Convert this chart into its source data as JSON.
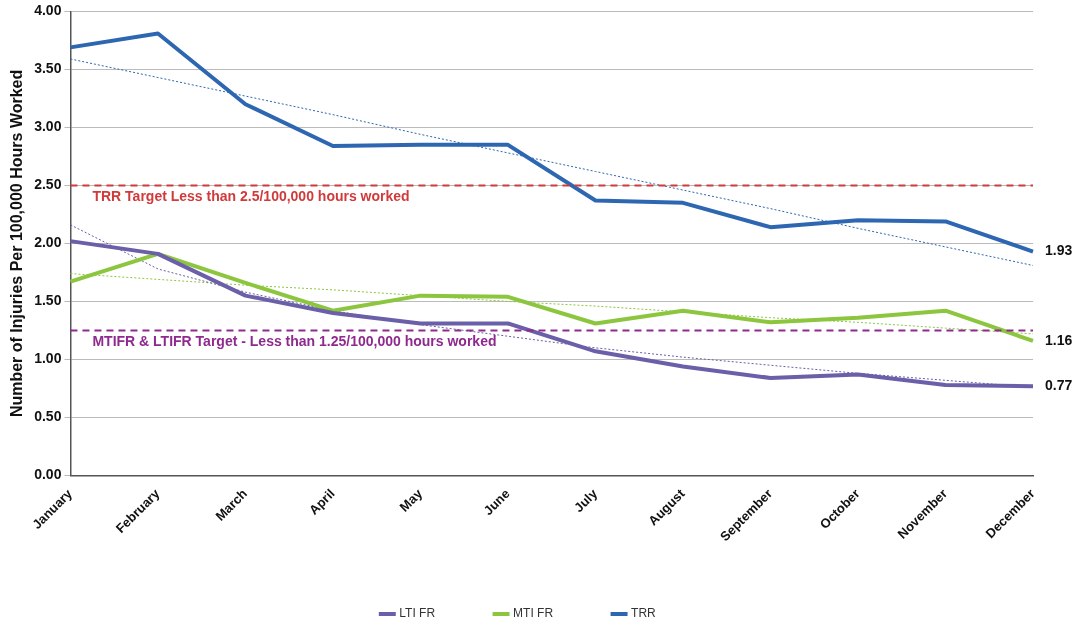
{
  "chart_data": {
    "type": "line",
    "ylabel": "Number of Injuries Per 100,000 Hours Worked",
    "categories": [
      "January",
      "February",
      "March",
      "April",
      "May",
      "June",
      "July",
      "August",
      "September",
      "October",
      "November",
      "December"
    ],
    "series": [
      {
        "name": "LTI FR",
        "color": "#6a5fa8",
        "values": [
          2.02,
          1.91,
          1.55,
          1.4,
          1.31,
          1.31,
          1.07,
          0.94,
          0.84,
          0.87,
          0.78,
          0.77
        ],
        "value_labels": [
          null,
          null,
          null,
          null,
          null,
          null,
          null,
          null,
          null,
          null,
          null,
          "0.77"
        ]
      },
      {
        "name": "MTI FR",
        "color": "#8cc63f",
        "values": [
          1.67,
          1.91,
          1.66,
          1.42,
          1.55,
          1.54,
          1.31,
          1.42,
          1.32,
          1.36,
          1.42,
          1.16
        ],
        "value_labels": [
          null,
          null,
          null,
          null,
          null,
          null,
          null,
          null,
          null,
          null,
          null,
          "1.16"
        ]
      },
      {
        "name": "TRR",
        "color": "#2e67b1",
        "values": [
          3.69,
          3.81,
          3.2,
          2.84,
          2.85,
          2.85,
          2.37,
          2.35,
          2.14,
          2.2,
          2.19,
          1.93
        ],
        "value_labels": [
          null,
          null,
          null,
          null,
          null,
          null,
          null,
          null,
          null,
          null,
          null,
          "1.93"
        ]
      },
      {
        "color": "#6a5fa8",
        "line_style": "dotted",
        "values": [
          2.16,
          1.78,
          1.58,
          1.42,
          1.3,
          1.2,
          1.1,
          1.02,
          0.95,
          0.88,
          0.82,
          0.76
        ]
      },
      {
        "color": "#8cc63f",
        "line_style": "dotted",
        "values": [
          1.74,
          1.69,
          1.64,
          1.6,
          1.55,
          1.5,
          1.46,
          1.41,
          1.36,
          1.32,
          1.27,
          1.22
        ]
      },
      {
        "color": "#2e67b1",
        "line_style": "dotted",
        "values": [
          3.59,
          3.43,
          3.27,
          3.11,
          2.94,
          2.78,
          2.62,
          2.46,
          2.3,
          2.13,
          1.97,
          1.81
        ]
      }
    ],
    "ylim": [
      0,
      4
    ],
    "yticks": [
      {
        "value": 0,
        "label": "0.00"
      },
      {
        "value": 0.5,
        "label": "0.50"
      },
      {
        "value": 1,
        "label": "1.00"
      },
      {
        "value": 1.5,
        "label": "1.50"
      },
      {
        "value": 2,
        "label": "2.00"
      },
      {
        "value": 2.5,
        "label": "2.50"
      },
      {
        "value": 3,
        "label": "3.00"
      },
      {
        "value": 3.5,
        "label": "3.50"
      },
      {
        "value": 4,
        "label": "4.00"
      }
    ],
    "ref_lines": [
      {
        "axis": "y",
        "value": 2.5,
        "label": "TRR Target Less than 2.5/100,000 hours worked",
        "color": "#d03a3a",
        "line_style": "dashed"
      },
      {
        "axis": "y",
        "value": 1.25,
        "label": "MTIFR & LTIFR Target - Less than 1.25/100,000 hours worked",
        "color": "#8e2a8e",
        "line_style": "dashed"
      }
    ],
    "grid": "y",
    "legend": "bottom",
    "marker": "none",
    "line_style": "solid"
  }
}
